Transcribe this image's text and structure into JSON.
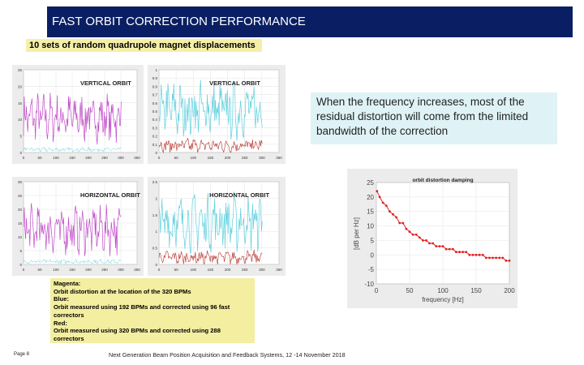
{
  "slide": {
    "title": "FAST ORBIT CORRECTION PERFORMANCE",
    "subtitle": "10 sets of random quadrupole magnet displacements",
    "callout": "When the frequency increases, most of the residual distortion will come from the limited bandwidth of the correction",
    "legend_lines": [
      "Magenta:",
      "Orbit distortion at the location of the 320 BPMs",
      "Blue:",
      " Orbit measured using 192 BPMs and corrected using 96 fast",
      "correctors",
      "Red:",
      "Orbit measured using 320 BPMs and corrected using 288",
      "correctors"
    ],
    "footer_left": "Page 8",
    "footer_center": "Next Generation Beam Position Acquisition and Feedback Systems, 12 -14 November 2018"
  },
  "colors": {
    "title_bg": "#0a1f63",
    "magenta": "#c04ec8",
    "cyan": "#5fd0de",
    "red": "#b4312a",
    "damping": "#e02020"
  },
  "panels": [
    {
      "label": "VERTICAL ORBIT",
      "series": "magenta",
      "y_ticks": [
        "25",
        "20",
        "15",
        "10",
        "5",
        "0"
      ],
      "x_ticks": [
        "0",
        "50",
        "100",
        "150",
        "200",
        "250",
        "300",
        "350"
      ]
    },
    {
      "label": "VERTICAL ORBIT",
      "series": "cyan_red",
      "y_ticks": [
        "1",
        "0.9",
        "0.8",
        "0.7",
        "0.6",
        "0.5",
        "0.4",
        "0.3",
        "0.2",
        "0.1",
        "0"
      ],
      "x_ticks": [
        "0",
        "50",
        "100",
        "150",
        "200",
        "250",
        "300",
        "350"
      ]
    },
    {
      "label": "HORIZONTAL ORBIT",
      "series": "magenta",
      "y_ticks": [
        "30",
        "25",
        "20",
        "15",
        "10",
        "5",
        "0"
      ],
      "x_ticks": [
        "0",
        "50",
        "100",
        "150",
        "200",
        "250",
        "300",
        "350"
      ]
    },
    {
      "label": "HORIZONTAL ORBIT",
      "series": "cyan_red",
      "y_ticks": [
        "2.5",
        "2",
        "1.5",
        "1",
        "0.5",
        "0"
      ],
      "x_ticks": [
        "0",
        "50",
        "100",
        "150",
        "200",
        "250",
        "300",
        "350"
      ]
    }
  ],
  "chart_data": {
    "type": "line",
    "title": "orbit distortion damping",
    "xlabel": "frequency [Hz]",
    "ylabel": "[dB per Hz]",
    "xlim": [
      0,
      200
    ],
    "ylim": [
      -10,
      25
    ],
    "x_ticks": [
      "0",
      "50",
      "100",
      "150",
      "200"
    ],
    "y_ticks": [
      "25",
      "20",
      "15",
      "10",
      "5",
      "0",
      "-5",
      "-10"
    ],
    "series": [
      {
        "x": [
          1,
          5,
          10,
          15,
          20,
          25,
          30,
          35,
          40,
          45,
          50,
          55,
          60,
          65,
          70,
          75,
          80,
          85,
          90,
          95,
          100,
          105,
          110,
          115,
          120,
          125,
          130,
          135,
          140,
          145,
          150,
          155,
          160,
          165,
          170,
          175,
          180,
          185,
          190,
          195,
          200
        ],
        "values": [
          22,
          20,
          18,
          17,
          15,
          14,
          13,
          11,
          11,
          9,
          8,
          7,
          7,
          6,
          5,
          5,
          4,
          4,
          3,
          3,
          3,
          2,
          2,
          2,
          1,
          1,
          1,
          1,
          0,
          0,
          0,
          0,
          0,
          -1,
          -1,
          -1,
          -1,
          -1,
          -1,
          -2,
          -2
        ]
      }
    ]
  }
}
